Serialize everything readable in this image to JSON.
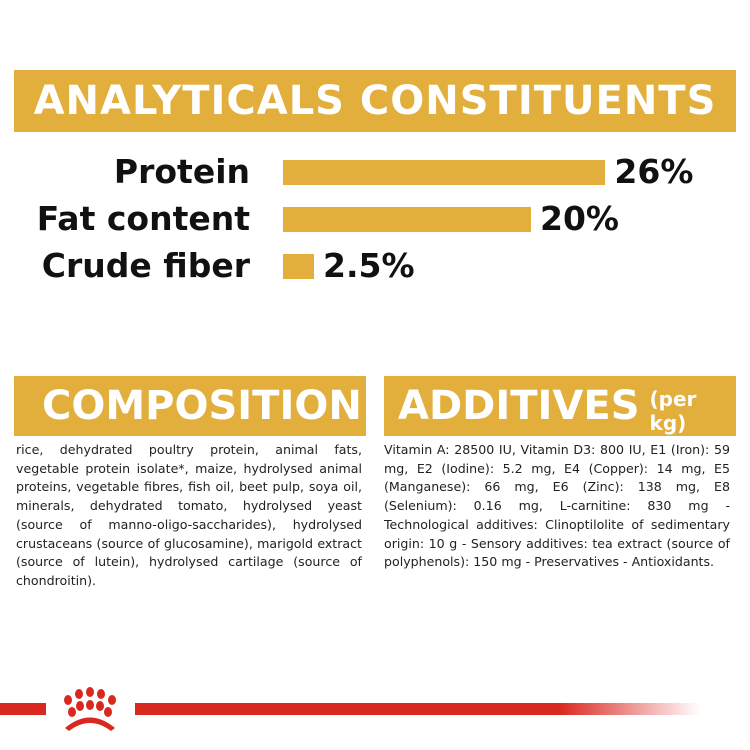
{
  "analyticals": {
    "title": "ANALYTICALS CONSTITUENTS",
    "items": [
      {
        "label": "Protein",
        "value": 26,
        "display": "26%"
      },
      {
        "label": "Fat content",
        "value": 20,
        "display": "20%"
      },
      {
        "label": "Crude fiber",
        "value": 2.5,
        "display": "2.5%"
      }
    ]
  },
  "composition": {
    "title": "COMPOSITION",
    "text": "rice, dehydrated poultry protein, animal fats, vegetable protein isolate*, maize, hydrolysed animal proteins, vegetable fibres, fish oil, beet pulp, soya oil, minerals, dehydrated tomato, hydrolysed yeast (source of manno-oligo-saccharides), hydrolysed crustaceans (source of glucosamine), marigold extract (source of lutein), hydrolysed cartilage (source of chondroitin)."
  },
  "additives": {
    "title": "ADDITIVES",
    "unit": "(per kg)",
    "text": "Vitamin A: 28500 IU, Vitamin D3: 800 IU, E1 (Iron): 59 mg, E2 (Iodine): 5.2 mg, E4 (Copper): 14 mg, E5 (Manganese): 66 mg, E6 (Zinc): 138 mg, E8 (Selenium): 0.16 mg, L-carnitine: 830 mg - Technological additives: Clinoptilolite of sedimentary origin: 10 g - Sensory additives: tea extract (source of polyphenols): 150 mg - Preservatives - Antioxidants."
  },
  "colors": {
    "accent": "#e2ae3c",
    "brand_red": "#d9281f"
  },
  "footer": {
    "logo": "royal-canin-crown-icon"
  }
}
